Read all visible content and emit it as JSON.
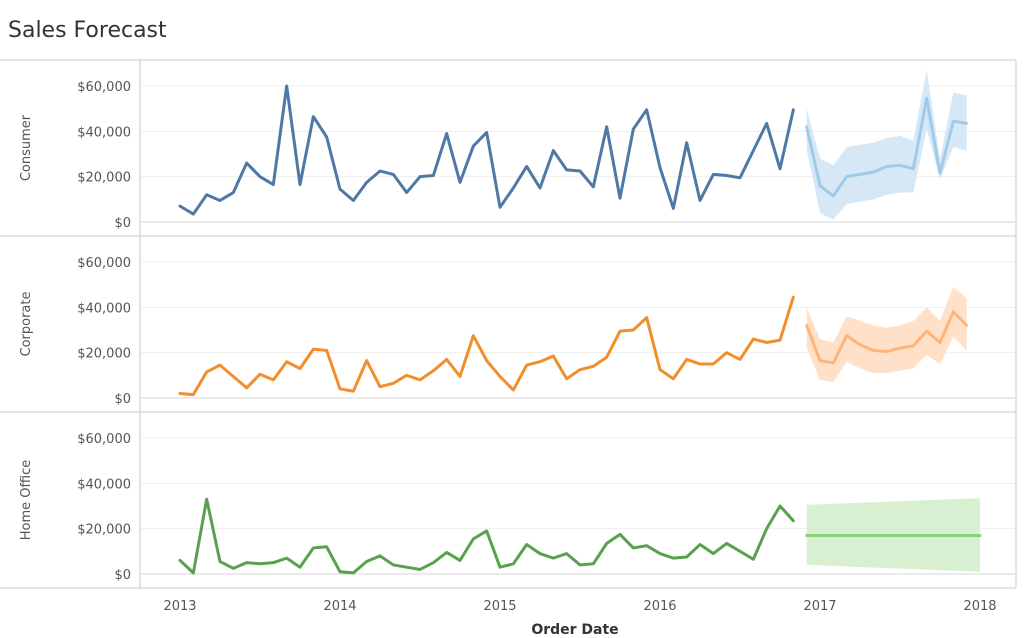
{
  "title": "Sales Forecast",
  "chart_data": {
    "type": "line",
    "title": "Sales Forecast",
    "xlabel": "Order Date",
    "x_ticks": [
      "2013",
      "2014",
      "2015",
      "2016",
      "2017",
      "2018"
    ],
    "y_ticks": [
      "$0",
      "$20,000",
      "$40,000",
      "$60,000"
    ],
    "ylim": [
      0,
      65000
    ],
    "grid": true,
    "panels": [
      {
        "name": "Consumer",
        "color": "#4e79a7",
        "forecast_color": "#a0cbe8",
        "band_color": "#d6e7f5",
        "actual": [
          7000,
          3500,
          12000,
          9500,
          13000,
          26000,
          20000,
          16500,
          60000,
          16500,
          46500,
          37500,
          14500,
          9500,
          17500,
          22500,
          21000,
          13000,
          20000,
          20500,
          39000,
          17500,
          33500,
          39500,
          6500,
          15000,
          24500,
          15000,
          31500,
          23000,
          22500,
          15500,
          42000,
          10500,
          41000,
          49500,
          24000,
          6000,
          35000,
          9500,
          21000,
          20500,
          19500,
          31500,
          43500,
          23500,
          49500
        ],
        "forecast": [
          42000,
          16000,
          11500,
          20000,
          21000,
          22000,
          24500,
          25000,
          23500,
          54500,
          21500,
          44500,
          43500
        ],
        "forecast_low": [
          32000,
          4000,
          1000,
          8000,
          9000,
          10000,
          12000,
          13000,
          13000,
          41000,
          19000,
          33000,
          31500
        ],
        "forecast_high": [
          50000,
          28000,
          25000,
          33000,
          34000,
          35000,
          37000,
          38000,
          36000,
          67000,
          28000,
          57000,
          56000
        ]
      },
      {
        "name": "Corporate",
        "color": "#f28e2b",
        "forecast_color": "#ffb47a",
        "band_color": "#ffe0c8",
        "actual": [
          2000,
          1500,
          11500,
          14500,
          9500,
          4500,
          10500,
          8000,
          16000,
          13000,
          21500,
          21000,
          4000,
          3000,
          16500,
          5000,
          6500,
          10000,
          8000,
          12000,
          17000,
          9500,
          27500,
          16500,
          9500,
          3500,
          14500,
          16000,
          18500,
          8500,
          12500,
          14000,
          18000,
          29500,
          30000,
          35500,
          12500,
          8500,
          17000,
          15000,
          15000,
          20000,
          17000,
          26000,
          24500,
          25500,
          44500
        ],
        "forecast": [
          32000,
          16500,
          15500,
          27500,
          23500,
          21000,
          20500,
          22000,
          23000,
          29500,
          24500,
          38000,
          32000
        ],
        "forecast_low": [
          22000,
          8000,
          7000,
          16000,
          13000,
          11000,
          11000,
          12000,
          13000,
          19000,
          15000,
          27000,
          21000
        ],
        "forecast_high": [
          40000,
          26000,
          24500,
          36000,
          34000,
          32000,
          31000,
          32000,
          34000,
          40000,
          34000,
          49000,
          44000
        ]
      },
      {
        "name": "Home Office",
        "color": "#59a14f",
        "forecast_color": "#8cd17d",
        "band_color": "#d8efd2",
        "actual": [
          6000,
          500,
          33000,
          5500,
          2500,
          5000,
          4500,
          5000,
          7000,
          3000,
          11500,
          12000,
          1000,
          500,
          5500,
          8000,
          4000,
          3000,
          2000,
          5000,
          9500,
          6000,
          15500,
          19000,
          3000,
          4500,
          13000,
          9000,
          7000,
          9000,
          4000,
          4500,
          13500,
          17500,
          11500,
          12500,
          9000,
          7000,
          7500,
          13000,
          9000,
          13500,
          10000,
          6500,
          20000,
          30000,
          23500
        ],
        "forecast": [
          17000,
          17000
        ],
        "forecast_low": [
          4000,
          1000
        ],
        "forecast_high": [
          30500,
          33500
        ]
      }
    ]
  }
}
